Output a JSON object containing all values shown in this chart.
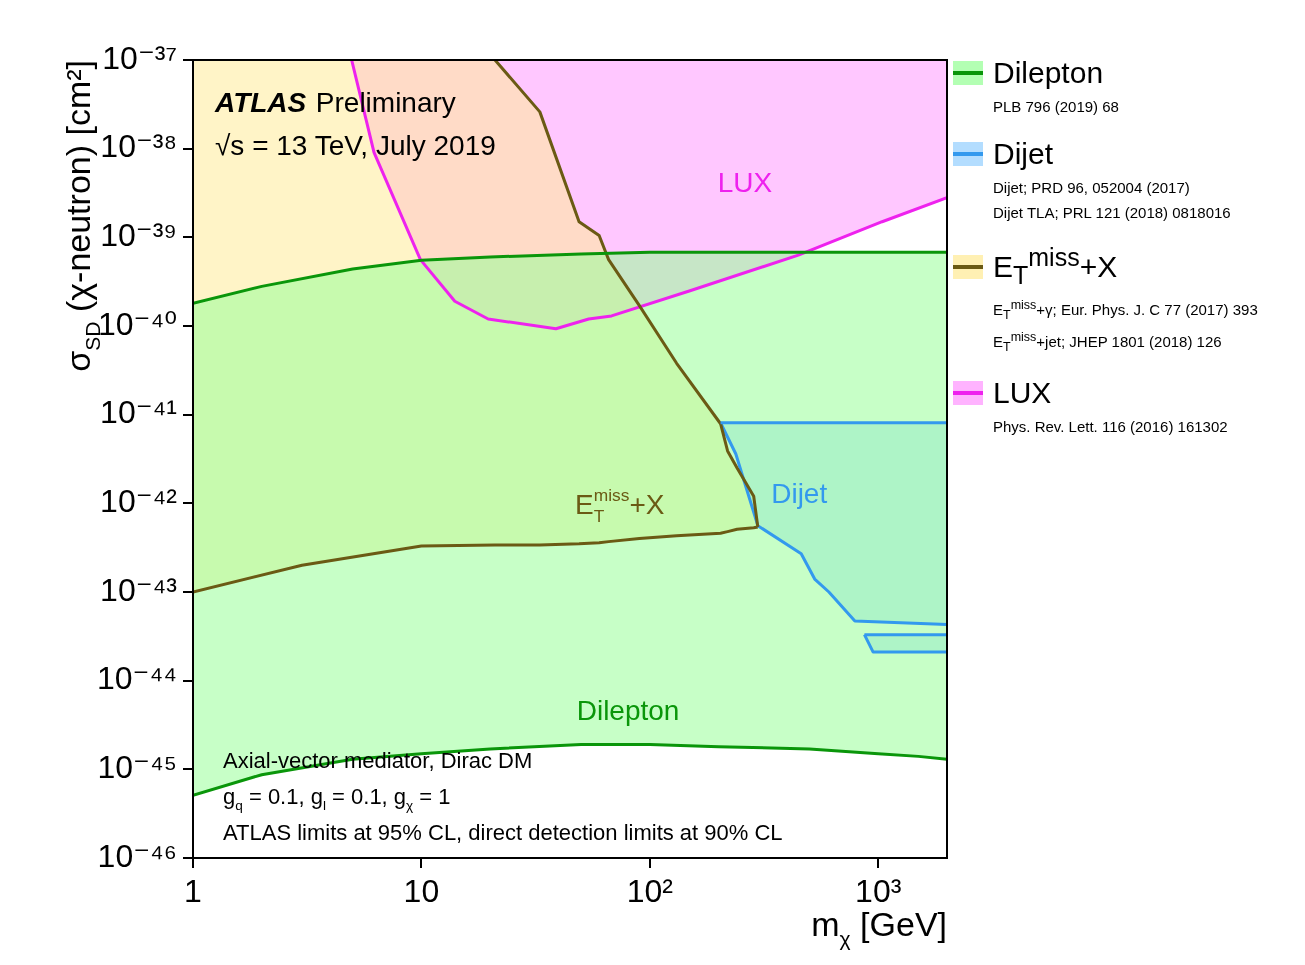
{
  "chart_data": {
    "type": "line",
    "xlabel": "m$_{χ}$ [GeV]",
    "ylabel": "σ$_{SD}$ (χ-neutron) [cm²]",
    "log": "xy",
    "legend": "right",
    "xlim": [
      1,
      2000
    ],
    "xticks": [
      1,
      10,
      {
        "value": 100,
        "label": "10²"
      },
      {
        "value": 1000,
        "label": "10³"
      }
    ],
    "ylim": [
      1e-46,
      1e-37
    ],
    "yticks": [
      {
        "value": 1e-46,
        "label": "10⁻⁴⁶"
      },
      {
        "value": 1e-45,
        "label": "10⁻⁴⁵"
      },
      {
        "value": 1e-44,
        "label": "10⁻⁴⁴"
      },
      {
        "value": 1e-43,
        "label": "10⁻⁴³"
      },
      {
        "value": 1e-42,
        "label": "10⁻⁴²"
      },
      {
        "value": 1e-41,
        "label": "10⁻⁴¹"
      },
      {
        "value": 1e-40,
        "label": "10⁻⁴⁰"
      },
      {
        "value": 1e-39,
        "label": "10⁻³⁹"
      },
      {
        "value": 1e-38,
        "label": "10⁻³⁸"
      },
      {
        "value": 1e-37,
        "label": "10⁻³⁷"
      }
    ],
    "series": [
      {
        "name": "Dilepton",
        "color": "#0a960a",
        "x": [
          1,
          2,
          5,
          10,
          20,
          50,
          100,
          200,
          500,
          1000,
          1500,
          2000
        ],
        "values": [
          1.8e-40,
          2.8e-40,
          4.4e-40,
          5.5e-40,
          6e-40,
          6.5e-40,
          6.8e-40,
          6.8e-40,
          6.8e-40,
          6.8e-40,
          6.8e-40,
          6.8e-40
        ],
        "lower": [
          5.1e-46,
          8.7e-46,
          1.3e-45,
          1.5e-45,
          1.7e-45,
          1.9e-45,
          1.9e-45,
          1.8e-45,
          1.7e-45,
          1.5e-45,
          1.4e-45,
          1.3e-45
        ],
        "upper": [
          1.8e-40,
          2.8e-40,
          4.4e-40,
          5.5e-40,
          6e-40,
          6.5e-40,
          6.8e-40,
          6.8e-40,
          6.8e-40,
          6.8e-40,
          6.8e-40,
          6.8e-40
        ]
      },
      {
        "name": "Dijet",
        "color": "#3399ee",
        "x": [
          204,
          238,
          297,
          460,
          527,
          608,
          790,
          2000
        ],
        "values": [
          8.1e-42,
          8.1e-42,
          8.1e-42,
          8.1e-42,
          8.1e-42,
          8.1e-42,
          8.1e-42,
          8.1e-42
        ],
        "lower": [
          8.1e-42,
          3.6e-42,
          5.6e-43,
          2.7e-43,
          1.4e-43,
          1e-43,
          4.7e-44,
          4.3e-44
        ],
        "upper": [
          8.1e-42,
          8.1e-42,
          8.1e-42,
          8.1e-42,
          8.1e-42,
          8.1e-42,
          8.1e-42,
          8.1e-42
        ]
      },
      {
        "name": "E$_{T}$$^{miss}$+X",
        "color": "#6b5a14",
        "x": [
          1,
          3,
          10,
          21,
          33,
          49,
          60,
          66,
          90,
          131,
          204,
          219,
          241,
          285,
          297
        ],
        "values": [
          null,
          null,
          null,
          1e-37,
          2.6e-38,
          1.5e-39,
          1.05e-39,
          5.6e-40,
          1.7e-40,
          3.8e-41,
          7.9e-42,
          3.9e-42,
          2.5e-42,
          1.2e-42,
          5.4e-43
        ],
        "lower": [
          1e-43,
          2e-43,
          3.3e-43,
          3.4e-43,
          3.4e-43,
          3.5e-43,
          3.6e-43,
          3.7e-43,
          4e-43,
          4.3e-43,
          4.6e-43,
          4.8e-43,
          5.1e-43,
          5.3e-43,
          5.4e-43
        ],
        "upper": [
          1e-37,
          1e-37,
          1e-37,
          1e-37,
          2.6e-38,
          1.5e-39,
          1.05e-39,
          5.6e-40,
          1.7e-40,
          3.8e-41,
          7.9e-42,
          3.9e-42,
          2.5e-42,
          1.2e-42,
          5.4e-43
        ]
      },
      {
        "name": "LUX",
        "color": "#ee22ee",
        "x": [
          4.95,
          6.2,
          9.9,
          14,
          19.6,
          38.8,
          54,
          68,
          150,
          447,
          1040,
          2000
        ],
        "values": [
          1e-37,
          9.1e-39,
          5.6e-40,
          1.9e-40,
          1.2e-40,
          9.3e-41,
          1.2e-40,
          1.3e-40,
          2.5e-40,
          6.3e-40,
          1.5e-39,
          2.8e-39
        ],
        "lower": [
          1e-37,
          9.1e-39,
          5.6e-40,
          1.9e-40,
          1.2e-40,
          9.3e-41,
          1.2e-40,
          1.3e-40,
          2.5e-40,
          6.3e-40,
          1.5e-39,
          2.8e-39
        ],
        "upper": [
          1e-37,
          1e-37,
          1e-37,
          1e-37,
          1e-37,
          1e-37,
          1e-37,
          1e-37,
          1e-37,
          1e-37,
          1e-37,
          1e-37
        ]
      },
      {
        "color": "#3399ee",
        "x": [
          870,
          950,
          2000
        ],
        "values": [
          3.3e-44,
          3.3e-44,
          3.3e-44
        ],
        "lower": [
          3.3e-44,
          2.1e-44,
          2.1e-44
        ],
        "upper": [
          3.3e-44,
          3.3e-44,
          3.3e-44
        ]
      },
      {
        "color": "#3399ee",
        "x": [
          870,
          950,
          2000
        ],
        "values": [
          3.3e-44,
          2.1e-44,
          2.1e-44
        ]
      },
      {
        "color": "#0a960a",
        "x": [
          1,
          2,
          5,
          10,
          20,
          50,
          100,
          200,
          500,
          1000,
          1500,
          2000
        ],
        "values": [
          5.1e-46,
          8.7e-46,
          1.3e-45,
          1.5e-45,
          1.7e-45,
          1.9e-45,
          1.9e-45,
          1.8e-45,
          1.7e-45,
          1.5e-45,
          1.4e-45,
          1.3e-45
        ]
      },
      {
        "color": "#3399ee",
        "x": [
          204,
          238,
          297,
          460,
          527,
          608,
          790,
          2000
        ],
        "values": [
          8.1e-42,
          3.6e-42,
          5.6e-43,
          2.7e-43,
          1.4e-43,
          1e-43,
          4.7e-44,
          4.3e-44
        ]
      },
      {
        "color": "#6b5a14",
        "x": [
          1,
          3,
          10,
          21,
          33,
          49,
          60,
          66,
          90,
          131,
          204,
          219,
          241,
          285,
          297
        ],
        "values": [
          1e-43,
          2e-43,
          3.3e-43,
          3.4e-43,
          3.4e-43,
          3.5e-43,
          3.6e-43,
          3.7e-43,
          4e-43,
          4.3e-43,
          4.6e-43,
          4.8e-43,
          5.1e-43,
          5.3e-43,
          5.4e-43
        ]
      }
    ],
    "annotations": [
      "ATLAS Preliminary",
      "√s = 13 TeV, July 2019",
      "Dilepton",
      "Dijet",
      "E$_{T}$$^{miss}$+X",
      "LUX",
      "Axial-vector mediator, Dirac DM",
      "g$_{q}$ = 0.1, g$_{l}$ = 0.1, g$_{χ}$ = 1",
      "ATLAS limits at 95% CL, direct detection limits at 90% CL",
      "PLB 796 (2019) 68",
      "Dijet; PRD 96, 052004 (2017)",
      "Dijet TLA; PRL 121 (2018) 0818016",
      "E$_{T}$$^{miss}$+γ; Eur. Phys. J. C 77 (2017) 393",
      "E$_{T}$$^{miss}$+jet; JHEP 1801 (2018) 126",
      "Phys. Rev. Lett. 116 (2016) 161302"
    ]
  }
}
